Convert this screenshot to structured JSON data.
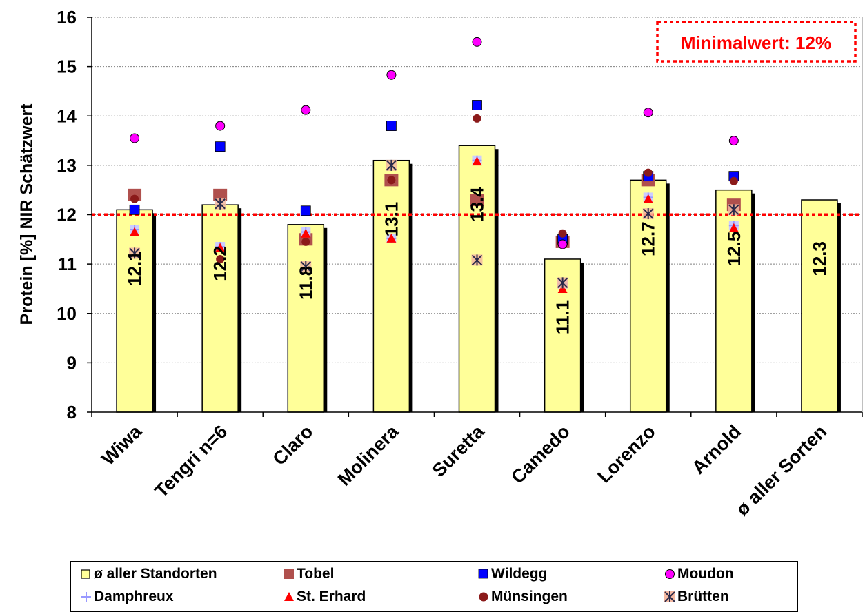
{
  "chart_data": {
    "type": "bar",
    "categories": [
      "Wiwa",
      "Tengri n=6",
      "Claro",
      "Molinera",
      "Suretta",
      "Camedo",
      "Lorenzo",
      "Arnold",
      "ø aller Sorten"
    ],
    "values": [
      12.1,
      12.2,
      11.8,
      13.1,
      13.4,
      11.1,
      12.7,
      12.5,
      12.3
    ],
    "bar_labels": [
      "12.1",
      "12.2",
      "11.8",
      "13.1",
      "13.4",
      "11.1",
      "12.7",
      "12.5",
      "12.3"
    ],
    "bar_series_name": "ø aller Standorten",
    "ylabel": "Protein [%] NIR Schätzwert",
    "xlabel": "",
    "ylim": [
      8,
      16
    ],
    "yticks": [
      8,
      9,
      10,
      11,
      12,
      13,
      14,
      15,
      16
    ],
    "grid": true,
    "reference_line": {
      "value": 12,
      "label": "Minimalwert: 12%",
      "color": "#ff0000"
    },
    "legend_position": "bottom",
    "series": [
      {
        "name": "Tobel",
        "marker": "square-large",
        "color": "#b0504d",
        "values": [
          12.4,
          12.4,
          11.5,
          12.7,
          12.3,
          11.45,
          12.7,
          12.2,
          null
        ]
      },
      {
        "name": "Wildegg",
        "marker": "square",
        "color": "#0000ff",
        "values": [
          12.1,
          13.38,
          12.08,
          13.8,
          14.22,
          11.5,
          12.78,
          12.78,
          null
        ]
      },
      {
        "name": "Moudon",
        "marker": "circle",
        "color": "#ff00ff",
        "values": [
          13.55,
          13.8,
          14.12,
          14.83,
          15.5,
          11.4,
          14.07,
          13.5,
          null
        ]
      },
      {
        "name": "Damphreux",
        "marker": "plus",
        "color": "#9999ff",
        "values": [
          11.7,
          11.35,
          11.65,
          11.52,
          13.1,
          10.6,
          12.35,
          11.78,
          null
        ]
      },
      {
        "name": "St. Erhard",
        "marker": "triangle",
        "color": "#ff0000",
        "values": [
          11.65,
          11.33,
          11.62,
          11.52,
          13.08,
          10.5,
          12.32,
          11.73,
          null
        ]
      },
      {
        "name": "Münsingen",
        "marker": "circle-small",
        "color": "#8b1a1a",
        "values": [
          12.32,
          11.1,
          11.45,
          12.7,
          13.95,
          11.62,
          12.85,
          12.68,
          null
        ]
      },
      {
        "name": "Brütten",
        "marker": "asterisk",
        "color": "#2a2a4a",
        "values": [
          11.22,
          12.22,
          10.95,
          13.0,
          11.08,
          10.62,
          12.02,
          12.1,
          null
        ]
      }
    ],
    "colors": {
      "bar_fill": "#ffff99",
      "bar_border": "#000000",
      "bar_shadow": "#000000",
      "gridline": "#808080"
    }
  }
}
